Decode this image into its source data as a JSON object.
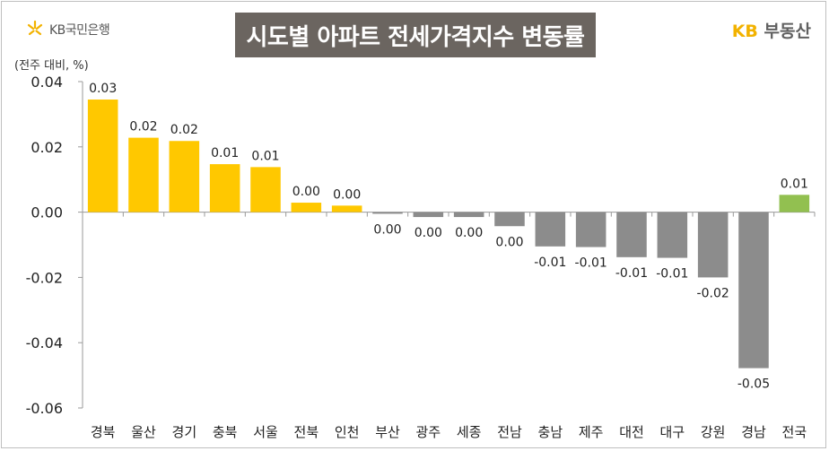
{
  "header": {
    "bank_logo": "KB국민은행",
    "title": "시도별 아파트 전세가격지수 변동률",
    "brand_kb": "KB",
    "brand_name": "부동산",
    "unit_label": "(전주 대비, %)"
  },
  "colors": {
    "positive": "#ffc800",
    "negative": "#8c8c8c",
    "national": "#92c050",
    "title_bg": "#6b6560"
  },
  "chart_data": {
    "type": "bar",
    "title": "시도별 아파트 전세가격지수 변동률",
    "ylabel": "(전주 대비, %)",
    "ylim": [
      -0.06,
      0.04
    ],
    "yticks": [
      0.04,
      0.02,
      0.0,
      -0.02,
      -0.04,
      -0.06
    ],
    "ytick_labels": [
      "0.04",
      "0.02",
      "0.00",
      "-0.02",
      "-0.04",
      "-0.06"
    ],
    "grid": false,
    "categories": [
      "경북",
      "울산",
      "경기",
      "충북",
      "서울",
      "전북",
      "인천",
      "부산",
      "광주",
      "세종",
      "전남",
      "충남",
      "제주",
      "대전",
      "대구",
      "강원",
      "경남",
      "전국"
    ],
    "values": [
      0.0345,
      0.0228,
      0.0218,
      0.0147,
      0.0138,
      0.0029,
      0.002,
      -0.0005,
      -0.0015,
      -0.0015,
      -0.0043,
      -0.0105,
      -0.0107,
      -0.0138,
      -0.014,
      -0.02,
      -0.0478,
      0.0053
    ],
    "data_labels": [
      "0.03",
      "0.02",
      "0.02",
      "0.01",
      "0.01",
      "0.00",
      "0.00",
      "0.00",
      "0.00",
      "0.00",
      "0.00",
      "-0.01",
      "-0.01",
      "-0.01",
      "-0.01",
      "-0.02",
      "-0.05",
      "0.01"
    ]
  }
}
